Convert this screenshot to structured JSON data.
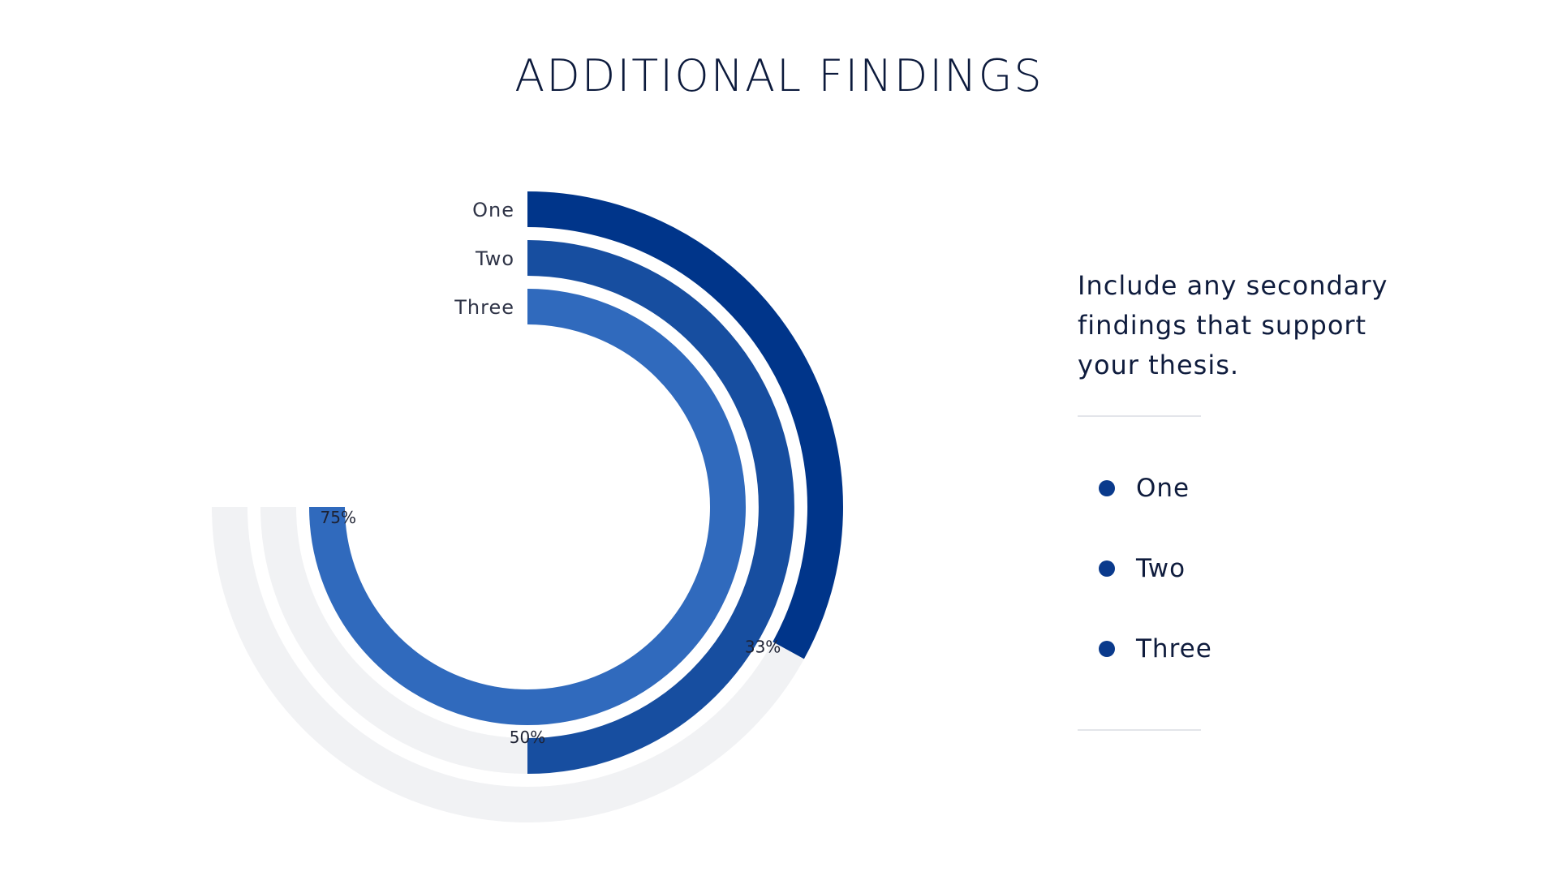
{
  "slide": {
    "title": "ADDITIONAL FINDINGS",
    "description": "Include any secondary findings that support your thesis."
  },
  "legend": {
    "items": [
      {
        "label": "One",
        "color": "#0a3a8c"
      },
      {
        "label": "Two",
        "color": "#0a3a8c"
      },
      {
        "label": "Three",
        "color": "#0a3a8c"
      }
    ]
  },
  "chart_data": {
    "type": "radial-bar",
    "title": "",
    "categories": [
      "One",
      "Two",
      "Three"
    ],
    "values": [
      0.33,
      0.5,
      0.75
    ],
    "value_labels": [
      "33%",
      "50%",
      "75%"
    ],
    "colors": [
      "#00358a",
      "#174ea0",
      "#306abd"
    ],
    "track_color": "#f1f2f4",
    "track_extent": 0.75,
    "start": "top",
    "direction": "clockwise"
  }
}
